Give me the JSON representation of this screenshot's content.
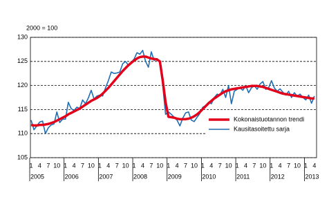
{
  "chart_data": {
    "type": "line",
    "unit_note": "2000 = 100",
    "categories": [
      "1",
      null,
      null,
      "4",
      null,
      null,
      "7",
      null,
      null,
      "10",
      null,
      null,
      "1",
      null,
      null,
      "4",
      null,
      null,
      "7",
      null,
      null,
      "10",
      null,
      null,
      "1",
      null,
      null,
      "4",
      null,
      null,
      "7",
      null,
      null,
      "10",
      null,
      null,
      "1",
      null,
      null,
      "4",
      null,
      null,
      "7",
      null,
      null,
      "10",
      null,
      null,
      "1",
      null,
      null,
      "4",
      null,
      null,
      "7",
      null,
      null,
      "10",
      null,
      null,
      "1",
      null,
      null,
      "4",
      null,
      null,
      "7",
      null,
      null,
      "10",
      null,
      null,
      "1",
      null,
      null,
      "4",
      null,
      null,
      "7",
      null,
      null,
      "10",
      null,
      null,
      "1",
      null,
      null,
      "4",
      null,
      null,
      "7",
      null,
      null,
      "10",
      null,
      null,
      "1",
      null,
      null,
      "4"
    ],
    "year_groups": [
      {
        "label": "2005",
        "months": 12
      },
      {
        "label": "2006",
        "months": 12
      },
      {
        "label": "2007",
        "months": 12
      },
      {
        "label": "2008",
        "months": 12
      },
      {
        "label": "2009",
        "months": 12
      },
      {
        "label": "2010",
        "months": 12
      },
      {
        "label": "2011",
        "months": 12
      },
      {
        "label": "2012",
        "months": 12
      },
      {
        "label": "2013",
        "months": 4
      }
    ],
    "series": [
      {
        "name": "Kokonaistuotannon trendi",
        "color": "#e3001b",
        "width": 3.5,
        "values": [
          111.8,
          111.7,
          111.7,
          111.8,
          111.8,
          111.9,
          112.0,
          112.2,
          112.4,
          112.7,
          113.0,
          113.3,
          113.6,
          114.0,
          114.3,
          114.6,
          114.9,
          115.2,
          115.6,
          116.0,
          116.4,
          116.8,
          117.1,
          117.4,
          117.8,
          118.3,
          118.9,
          119.5,
          120.2,
          120.9,
          121.6,
          122.3,
          123.0,
          123.6,
          124.2,
          124.7,
          125.2,
          125.6,
          125.9,
          126.0,
          126.0,
          125.8,
          125.6,
          125.5,
          125.4,
          125.0,
          121.0,
          116.5,
          113.5,
          113.4,
          113.3,
          113.1,
          113.0,
          113.0,
          113.0,
          113.1,
          113.3,
          113.6,
          114.0,
          114.5,
          115.1,
          115.7,
          116.3,
          116.8,
          117.3,
          117.7,
          118.1,
          118.5,
          118.8,
          119.0,
          119.2,
          119.3,
          119.4,
          119.5,
          119.6,
          119.7,
          119.8,
          119.9,
          119.9,
          119.9,
          119.8,
          119.7,
          119.5,
          119.3,
          119.1,
          118.9,
          118.7,
          118.5,
          118.3,
          118.2,
          118.1,
          118.0,
          117.9,
          117.8,
          117.7,
          117.6,
          117.5,
          117.4,
          117.3,
          117.3
        ]
      },
      {
        "name": "Kausitasoitettu sarja",
        "color": "#1f6db3",
        "width": 1.6,
        "values": [
          112.8,
          110.8,
          111.6,
          112.4,
          112.6,
          110.0,
          111.2,
          111.8,
          112.0,
          114.5,
          112.3,
          113.0,
          113.0,
          116.5,
          115.2,
          114.8,
          115.5,
          115.2,
          117.0,
          116.2,
          117.4,
          119.0,
          117.2,
          117.8,
          118.0,
          117.8,
          119.5,
          121.0,
          122.8,
          122.5,
          122.6,
          122.8,
          124.5,
          125.0,
          124.2,
          124.8,
          125.5,
          126.8,
          126.5,
          127.3,
          125.0,
          123.8,
          127.0,
          125.2,
          125.6,
          125.0,
          120.0,
          114.0,
          114.5,
          114.0,
          113.4,
          112.8,
          111.6,
          113.2,
          114.3,
          114.5,
          112.8,
          112.5,
          113.4,
          114.2,
          115.5,
          115.8,
          116.5,
          116.2,
          117.5,
          118.2,
          118.0,
          119.2,
          117.5,
          120.0,
          116.2,
          118.8,
          119.2,
          119.5,
          119.0,
          120.0,
          118.5,
          119.5,
          120.0,
          119.2,
          120.3,
          120.8,
          119.2,
          119.5,
          121.0,
          119.5,
          118.8,
          119.3,
          118.6,
          118.0,
          118.8,
          117.5,
          118.5,
          117.8,
          118.2,
          117.5,
          117.0,
          118.0,
          116.3,
          117.8
        ]
      }
    ],
    "ylim": [
      105,
      130
    ],
    "yticks": [
      105,
      110,
      115,
      120,
      125,
      130
    ],
    "grid": true,
    "legend": "lower right"
  }
}
